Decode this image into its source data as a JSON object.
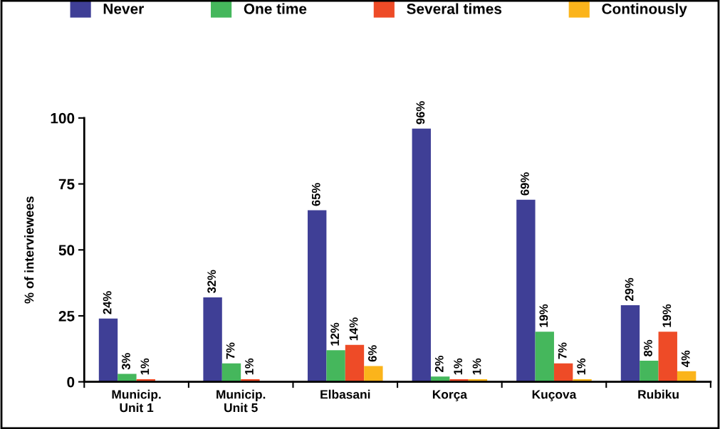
{
  "chart_data": {
    "type": "bar",
    "ylabel": "% of interviewees",
    "categories": [
      "Municip.\nUnit 1",
      "Municip.\nUnit 5",
      "Elbasani",
      "Korça",
      "Kuçova",
      "Rubiku"
    ],
    "series": [
      {
        "name": "Never",
        "color": "#3f3f96",
        "values": [
          24,
          32,
          65,
          96,
          69,
          29
        ],
        "value_labels": [
          "24%",
          "32%",
          "65%",
          "96%",
          "69%",
          "29%"
        ]
      },
      {
        "name": "One time",
        "color": "#45b75c",
        "values": [
          3,
          7,
          12,
          2,
          19,
          8
        ],
        "value_labels": [
          "3%",
          "7%",
          "12%",
          "2%",
          "19%",
          "8%"
        ]
      },
      {
        "name": "Several times",
        "color": "#ee4b27",
        "values": [
          1,
          1,
          14,
          1,
          7,
          19
        ],
        "value_labels": [
          "1%",
          "1%",
          "14%",
          "1%",
          "7%",
          "19%"
        ]
      },
      {
        "name": "Continously",
        "color": "#fbb41b",
        "values": [
          null,
          null,
          6,
          1,
          1,
          4
        ],
        "value_labels": [
          null,
          null,
          "6%",
          "1%",
          "1%",
          "4%"
        ]
      }
    ],
    "ylim": [
      0,
      100
    ],
    "yticks": [
      0,
      25,
      50,
      75,
      100
    ],
    "grid": false,
    "legend": "top"
  }
}
